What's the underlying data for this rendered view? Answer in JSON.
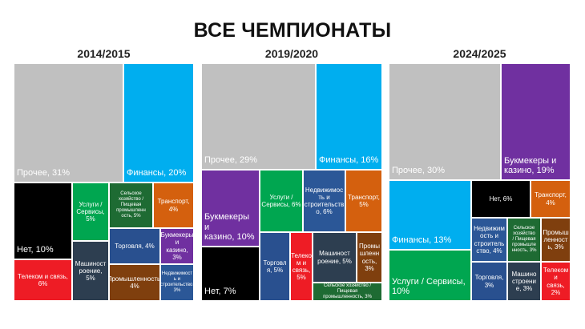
{
  "title": "ВСЕ ЧЕМПИОНАТЫ",
  "colors": {
    "Прочее": "#c0c0c0",
    "Финансы": "#00aeef",
    "Нет": "#000000",
    "Услуги / Сервисы": "#00a650",
    "Сельское хозяйство / Пищевая промышленность": "#1e6b33",
    "Транспорт": "#d4600e",
    "Телеком и связь": "#ee1c25",
    "Машиностроение": "#2d3e50",
    "Торговля": "#29508f",
    "Букмекеры и казино": "#7030a0",
    "Промышленность": "#7f3f0e",
    "Недвижимость и строительство": "#2b5797"
  },
  "chart_data": [
    {
      "type": "treemap",
      "title": "2014/2015",
      "cells": [
        {
          "name": "Прочее",
          "label": "Прочее, 31%",
          "value": 31
        },
        {
          "name": "Финансы",
          "label": "Финансы, 20%",
          "value": 20
        },
        {
          "name": "Нет",
          "label": "Нет, 10%",
          "value": 10
        },
        {
          "name": "Телеком и связь",
          "label": "Телеком и связь,\n6%",
          "value": 6
        },
        {
          "name": "Услуги / Сервисы",
          "label": "Услуги /\nСервисы,\n5%",
          "value": 5
        },
        {
          "name": "Машиностроение",
          "label": "Машиност\nроение,\n5%",
          "value": 5
        },
        {
          "name": "Сельское хозяйство / Пищевая промышленность",
          "label": "Сельское\nхозяйство /\nПищевая\nпромышленн\nость, 5%",
          "value": 5
        },
        {
          "name": "Транспорт",
          "label": "Транспорт,\n4%",
          "value": 4
        },
        {
          "name": "Торговля",
          "label": "Торговля, 4%",
          "value": 4
        },
        {
          "name": "Букмекеры и казино",
          "label": "Букмекеры\nи\nказино,\n3%",
          "value": 3
        },
        {
          "name": "Промышленность",
          "label": "Промышленность, 4%",
          "value": 4
        },
        {
          "name": "Недвижимость и строительство",
          "label": "Недвижимост\nь и\nстроительство, 3%",
          "value": 3
        }
      ]
    },
    {
      "type": "treemap",
      "title": "2019/2020",
      "cells": [
        {
          "name": "Прочее",
          "label": "Прочее, 29%",
          "value": 29
        },
        {
          "name": "Финансы",
          "label": "Финансы, 16%",
          "value": 16
        },
        {
          "name": "Букмекеры и казино",
          "label": "Букмекеры и\nказино, 10%",
          "value": 10
        },
        {
          "name": "Нет",
          "label": "Нет, 7%",
          "value": 7
        },
        {
          "name": "Услуги / Сервисы",
          "label": "Услуги /\nСервисы, 6%",
          "value": 6
        },
        {
          "name": "Торговля",
          "label": "Торговл\nя, 5%",
          "value": 5
        },
        {
          "name": "Телеком и связь",
          "label": "Телеко\nм и\nсвязь,\n5%",
          "value": 5
        },
        {
          "name": "Недвижимость и строительство",
          "label": "Недвижимос\nть и\nстроительств\nо, 6%",
          "value": 6
        },
        {
          "name": "Транспорт",
          "label": "Транспорт,\n5%",
          "value": 5
        },
        {
          "name": "Машиностроение",
          "label": "Машиност\nроение, 5%",
          "value": 5
        },
        {
          "name": "Промышленность",
          "label": "Промы\nшленн\nость,\n3%",
          "value": 3
        },
        {
          "name": "Сельское хозяйство / Пищевая промышленность",
          "label": "Сельское хозяйство / Пищевая\nпромышленность, 3%",
          "value": 3
        }
      ]
    },
    {
      "type": "treemap",
      "title": "2024/2025",
      "cells": [
        {
          "name": "Прочее",
          "label": "Прочее, 30%",
          "value": 30
        },
        {
          "name": "Букмекеры и казино",
          "label": "Букмекеры и\nказино, 19%",
          "value": 19
        },
        {
          "name": "Финансы",
          "label": "Финансы, 13%",
          "value": 13
        },
        {
          "name": "Услуги / Сервисы",
          "label": "Услуги / Сервисы,\n10%",
          "value": 10
        },
        {
          "name": "Нет",
          "label": "Нет, 6%",
          "value": 6
        },
        {
          "name": "Транспорт",
          "label": "Транспорт,\n4%",
          "value": 4
        },
        {
          "name": "Недвижимость и строительство",
          "label": "Недвижим\nость и\nстроитель\nство, 4%",
          "value": 4
        },
        {
          "name": "Сельское хозяйство / Пищевая промышленность",
          "label": "Сельское\nхозяйство\n/ Пищевая\nпромышле\nнность, 3%",
          "value": 3
        },
        {
          "name": "Промышленность",
          "label": "Промыш\nленност\nь, 3%",
          "value": 3
        },
        {
          "name": "Торговля",
          "label": "Торговля,\n3%",
          "value": 3
        },
        {
          "name": "Машиностроение",
          "label": "Машино\nстроени\nе, 3%",
          "value": 3
        },
        {
          "name": "Телеком и связь",
          "label": "Телеком и\nсвязь,\n2%",
          "value": 2
        }
      ]
    }
  ]
}
